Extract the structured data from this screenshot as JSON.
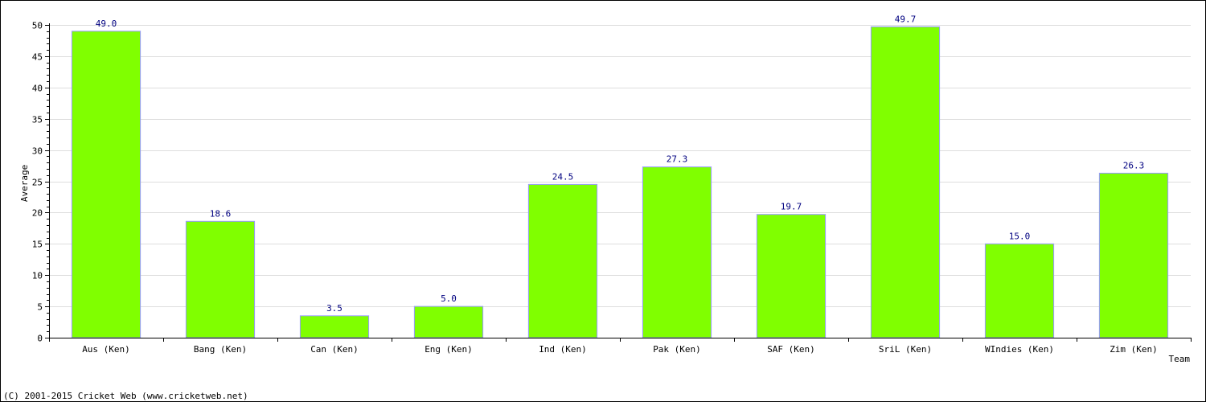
{
  "chart_data": {
    "type": "bar",
    "title": "",
    "xlabel": "Team",
    "ylabel": "Average",
    "ylim": [
      0,
      50
    ],
    "yticks": [
      "0",
      "5",
      "10",
      "15",
      "20",
      "25",
      "30",
      "35",
      "40",
      "45",
      "50"
    ],
    "grid": true,
    "legend": "none",
    "categories": [
      "Aus (Ken)",
      "Bang (Ken)",
      "Can (Ken)",
      "Eng (Ken)",
      "Ind (Ken)",
      "Pak (Ken)",
      "SAF (Ken)",
      "SriL (Ken)",
      "WIndies (Ken)",
      "Zim (Ken)"
    ],
    "values": [
      49.0,
      18.6,
      3.5,
      5.0,
      24.5,
      27.3,
      19.7,
      49.7,
      15.0,
      26.3
    ],
    "value_labels": [
      "49.0",
      "18.6",
      "3.5",
      "5.0",
      "24.5",
      "27.3",
      "19.7",
      "49.7",
      "15.0",
      "26.3"
    ],
    "colors": {
      "bar": "#80ff00",
      "bar_border": "#9999ff",
      "grid": "#dddddd",
      "axis": "#000000",
      "value_label": "#000080"
    }
  },
  "footer": {
    "copyright": "(C) 2001-2015 Cricket Web (www.cricketweb.net)"
  }
}
